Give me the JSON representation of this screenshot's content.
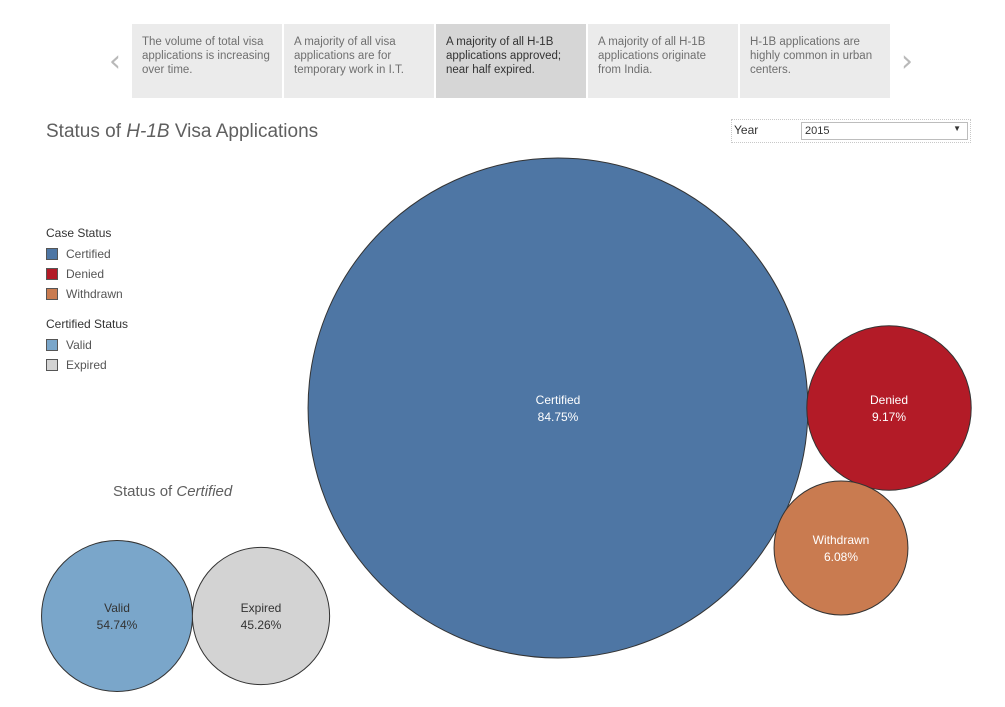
{
  "nav": {
    "prev_icon": "‹",
    "next_icon": "›"
  },
  "story_points": [
    "The volume of total visa applications is increasing over time.",
    "A majority of all visa applications are for temporary work in I.T.",
    "A majority of all H-1B applications approved; near half expired.",
    "A majority of all H-1B applications originate from India.",
    "H-1B applications are highly common in urban centers."
  ],
  "active_story_point": 2,
  "title": {
    "prefix": "Status of ",
    "emphasis": "H-1B",
    "suffix": " Visa Applications"
  },
  "filter": {
    "label": "Year",
    "value": "2015",
    "caret": "▼"
  },
  "legends": {
    "case_status": {
      "title": "Case Status",
      "items": [
        {
          "label": "Certified",
          "color": "#4e76a4"
        },
        {
          "label": "Denied",
          "color": "#b31b27"
        },
        {
          "label": "Withdrawn",
          "color": "#c97b50"
        }
      ]
    },
    "certified_status": {
      "title": "Certified Status",
      "items": [
        {
          "label": "Valid",
          "color": "#7aa6ca"
        },
        {
          "label": "Expired",
          "color": "#d3d3d3"
        }
      ]
    }
  },
  "subtitle": {
    "prefix": "Status of ",
    "emphasis": "Certified"
  },
  "chart_data": [
    {
      "type": "bubble",
      "title": "Status of H-1B Visa Applications",
      "series": [
        {
          "name": "Certified",
          "label": "Certified",
          "value": 84.75,
          "display": "84.75%",
          "color": "#4e76a4",
          "text_color": "#ffffff"
        },
        {
          "name": "Denied",
          "label": "Denied",
          "value": 9.17,
          "display": "9.17%",
          "color": "#b31b27",
          "text_color": "#ffffff"
        },
        {
          "name": "Withdrawn",
          "label": "Withdrawn",
          "value": 6.08,
          "display": "6.08%",
          "color": "#c97b50",
          "text_color": "#ffffff"
        }
      ]
    },
    {
      "type": "bubble",
      "title": "Status of Certified",
      "series": [
        {
          "name": "Valid",
          "label": "Valid",
          "value": 54.74,
          "display": "54.74%",
          "color": "#7aa6ca",
          "text_color": "#333333"
        },
        {
          "name": "Expired",
          "label": "Expired",
          "value": 45.26,
          "display": "45.26%",
          "color": "#d3d3d3",
          "text_color": "#333333"
        }
      ]
    }
  ]
}
